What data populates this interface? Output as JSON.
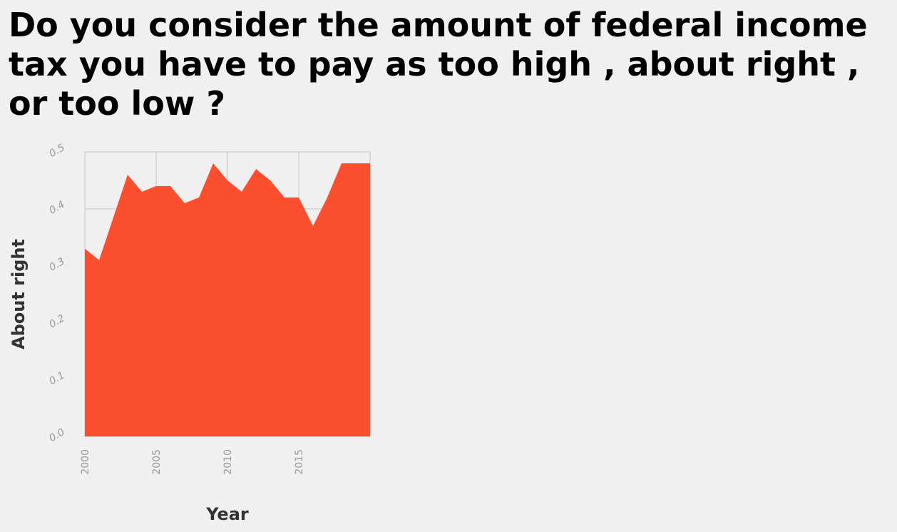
{
  "chart_data": {
    "type": "area",
    "title": "Do you consider the amount of federal income tax you have to pay as too high , about right , or too low ?",
    "xlabel": "Year",
    "ylabel": "About right",
    "x": [
      2000,
      2001,
      2002,
      2003,
      2004,
      2005,
      2006,
      2007,
      2008,
      2009,
      2010,
      2011,
      2012,
      2013,
      2014,
      2015,
      2016,
      2017,
      2018,
      2019,
      2020
    ],
    "values": [
      0.33,
      0.31,
      0.385,
      0.46,
      0.43,
      0.44,
      0.44,
      0.41,
      0.42,
      0.48,
      0.45,
      0.43,
      0.47,
      0.45,
      0.42,
      0.42,
      0.37,
      0.42,
      0.48,
      0.48,
      0.48
    ],
    "xlim": [
      2000,
      2020
    ],
    "ylim": [
      0,
      0.5
    ],
    "x_ticks": [
      "2000",
      "2005",
      "2010",
      "2015"
    ],
    "y_ticks": [
      "0.0",
      "0.1",
      "0.2",
      "0.3",
      "0.4",
      "0.5"
    ],
    "fill_color": "#fc4f30",
    "grid": true
  }
}
